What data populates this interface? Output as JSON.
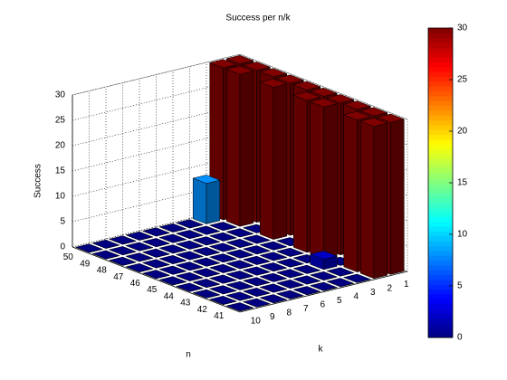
{
  "chart_data": {
    "type": "bar3",
    "title": "Success per n/k",
    "xlabel": "k",
    "ylabel": "n",
    "zlabel": "Success",
    "x": [
      1,
      2,
      3,
      4,
      5,
      6,
      7,
      8,
      9,
      10
    ],
    "y": [
      41,
      42,
      43,
      44,
      45,
      46,
      47,
      48,
      49,
      50
    ],
    "z": [
      [
        30,
        30,
        0,
        0,
        0,
        0,
        0,
        0,
        0,
        0
      ],
      [
        30,
        30,
        0,
        0,
        0,
        0,
        0,
        0,
        0,
        0
      ],
      [
        30,
        0,
        2,
        0,
        0,
        0,
        0,
        0,
        0,
        0
      ],
      [
        30,
        30,
        0,
        0,
        0,
        0,
        0,
        0,
        0,
        0
      ],
      [
        30,
        30,
        0,
        0,
        0,
        0,
        0,
        0,
        0,
        0
      ],
      [
        30,
        0,
        0,
        0,
        0,
        0,
        0,
        0,
        0,
        0
      ],
      [
        30,
        30,
        0,
        0,
        0,
        0,
        0,
        0,
        0,
        0
      ],
      [
        30,
        0,
        0,
        0,
        0,
        0,
        0,
        0,
        0,
        0
      ],
      [
        30,
        30,
        0,
        0,
        0,
        0,
        0,
        0,
        0,
        0
      ],
      [
        30,
        30,
        8,
        0,
        0,
        0,
        0,
        0,
        0,
        0
      ]
    ],
    "zlim": [
      0,
      30
    ],
    "zticks": [
      0,
      5,
      10,
      15,
      20,
      25,
      30
    ],
    "grid": true,
    "colormap": "jet",
    "colorbar": {
      "lim": [
        0,
        30
      ],
      "ticks": [
        0,
        5,
        10,
        15,
        20,
        25,
        30
      ]
    }
  }
}
